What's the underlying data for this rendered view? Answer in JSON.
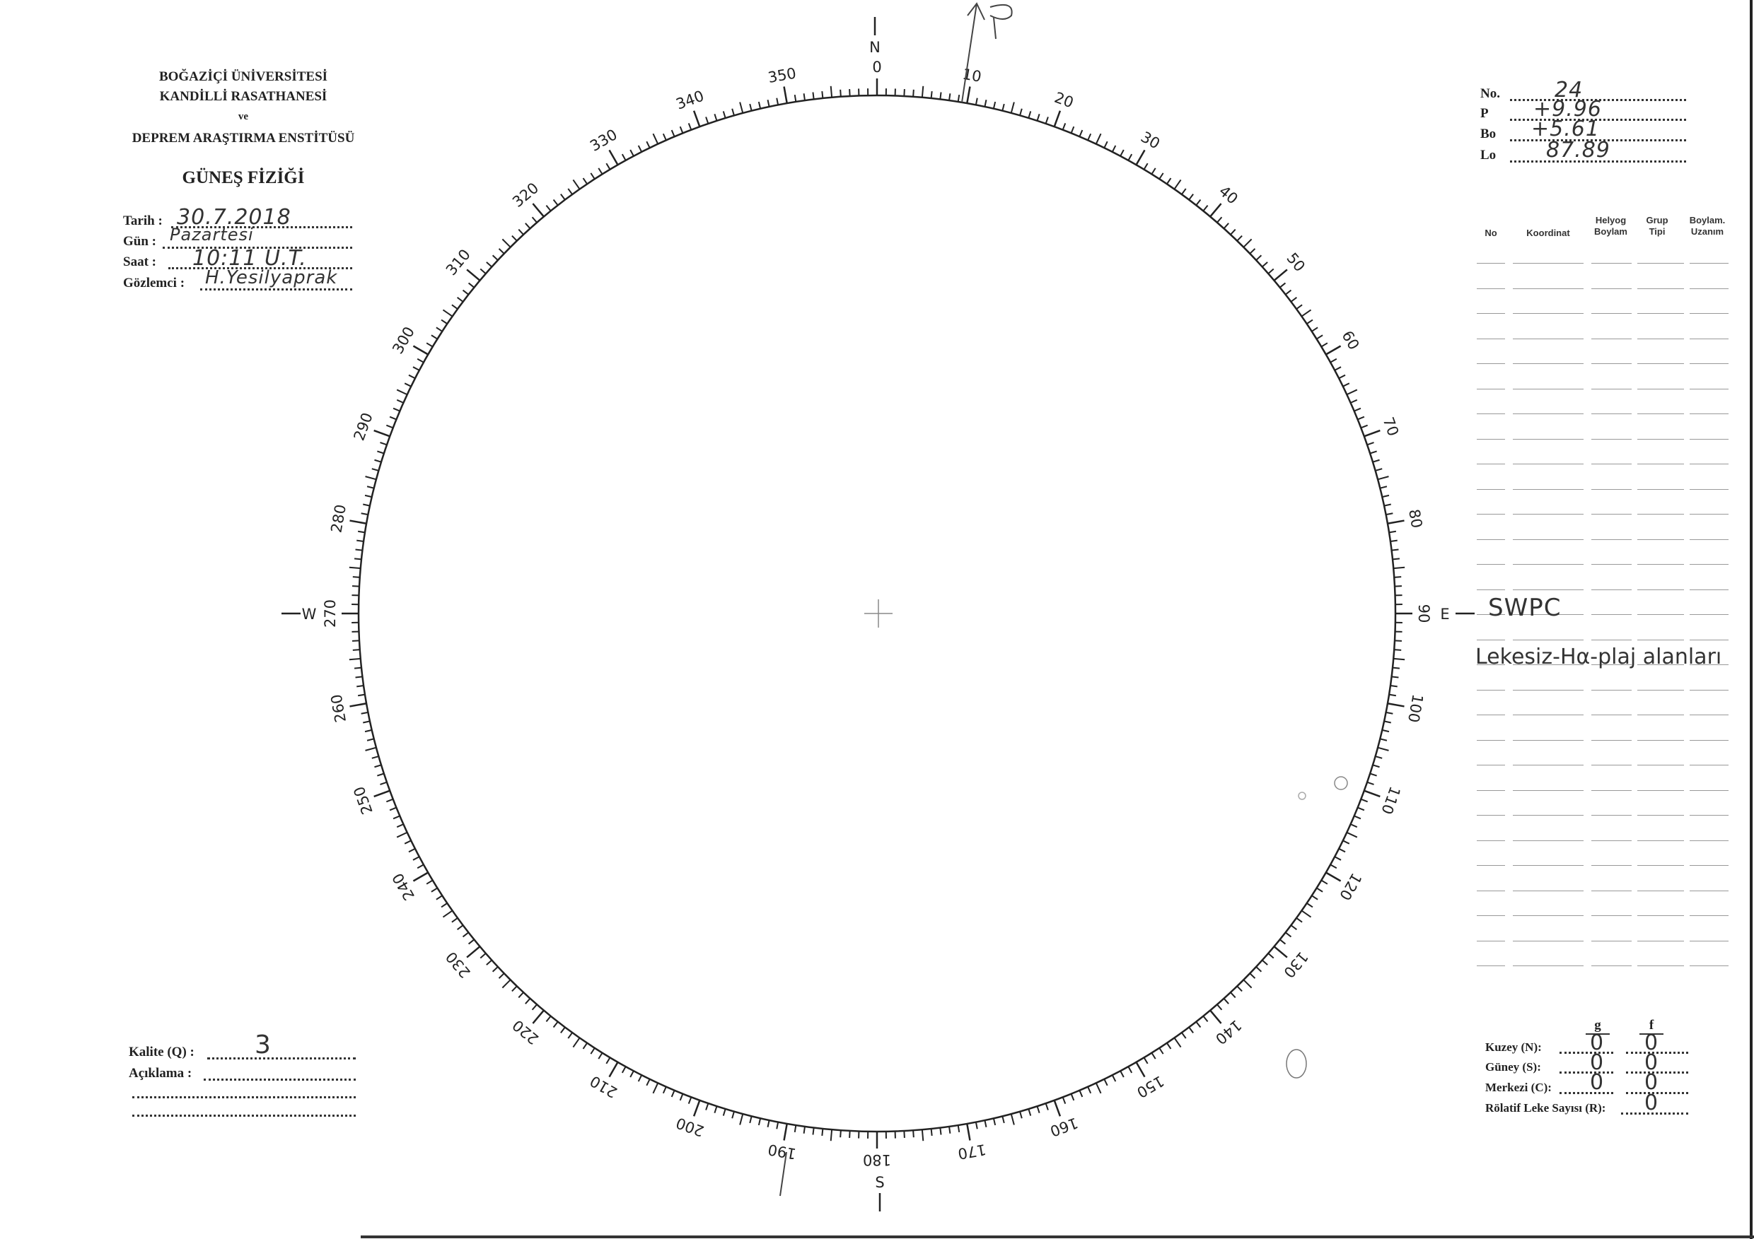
{
  "header": {
    "line1": "BOĞAZİÇİ ÜNİVERSİTESİ",
    "line2": "KANDİLLİ RASATHANESİ",
    "line3": "ve",
    "line4": "DEPREM ARAŞTIRMA ENSTİTÜSÜ",
    "title": "GÜNEŞ FİZİĞİ"
  },
  "observation": {
    "date_label": "Tarih :",
    "date_value": "30.7.2018",
    "day_label": "Gün :",
    "day_value": "Pazartesi",
    "time_label": "Saat :",
    "time_value": "10:11 U.T.",
    "observer_label": "Gözlemci :",
    "observer_value": "H.Yesilyaprak"
  },
  "parameters": {
    "no_label": "No.",
    "no_value": "24",
    "p_label": "P",
    "p_value": "+9.96",
    "bo_label": "Bo",
    "bo_value": "+5.61",
    "lo_label": "Lo",
    "lo_value": "87.89"
  },
  "table": {
    "headers": [
      "No",
      "Koordinat",
      "Helyog Boylam",
      "Grup Tipi",
      "Boylam. Uzanım"
    ],
    "notes": [
      "SWPC",
      "Lekesiz-Hα-plaj alanları"
    ]
  },
  "scale": {
    "labels": [
      "0",
      "10",
      "20",
      "30",
      "40",
      "50",
      "60",
      "70",
      "80",
      "90",
      "100",
      "110",
      "120",
      "130",
      "140",
      "150",
      "160",
      "170",
      "180",
      "190",
      "200",
      "210",
      "220",
      "230",
      "240",
      "250",
      "260",
      "270",
      "280",
      "290",
      "300",
      "310",
      "320",
      "330",
      "340",
      "350"
    ],
    "north": "N",
    "south": "S",
    "east": "E",
    "west": "W",
    "pole_mark": "P"
  },
  "quality": {
    "label": "Kalite (Q) :",
    "value": "3",
    "remark_label": "Açıklama :"
  },
  "counts": {
    "col_g": "g",
    "col_f": "f",
    "north_label": "Kuzey (N):",
    "north_g": "0",
    "north_f": "0",
    "south_label": "Güney (S):",
    "south_g": "0",
    "south_f": "0",
    "center_label": "Merkezi (C):",
    "center_g": "0",
    "center_f": "0",
    "relative_label": "Rölatif Leke Sayısı (R):",
    "relative_value": "0"
  }
}
